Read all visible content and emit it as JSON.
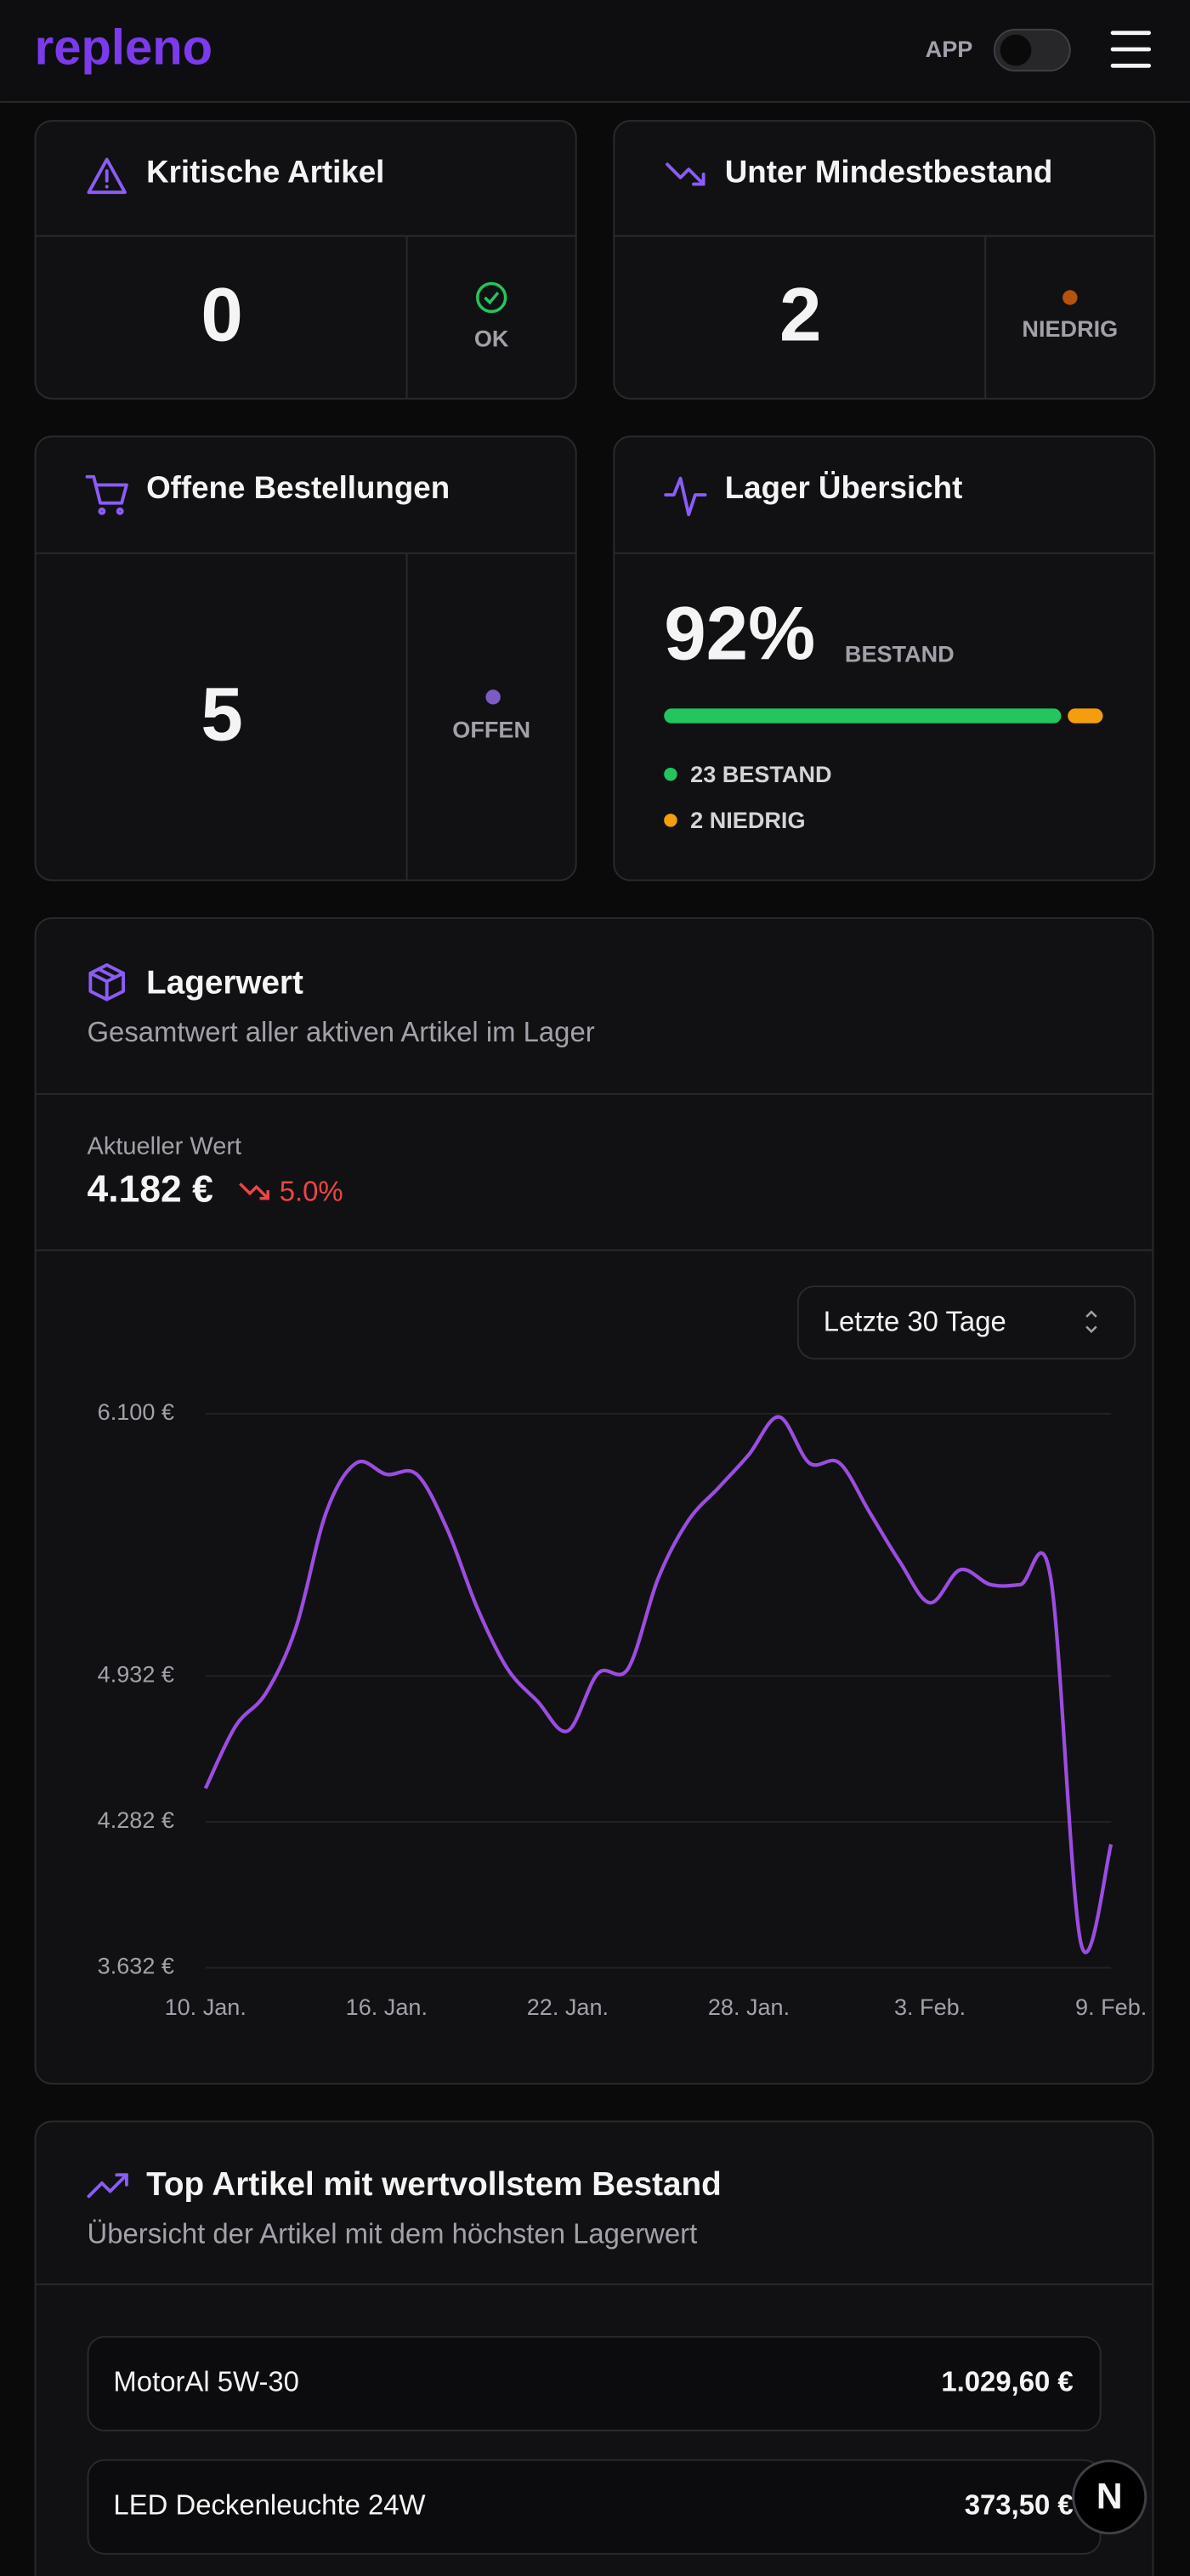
{
  "header": {
    "brand": "repleno",
    "toggle_label": "APP"
  },
  "cards": {
    "critical": {
      "title": "Kritische Artikel",
      "value": "0",
      "status": "OK"
    },
    "below_min": {
      "title": "Unter Mindestbestand",
      "value": "2",
      "status": "NIEDRIG"
    },
    "open_orders": {
      "title": "Offene Bestellungen",
      "value": "5",
      "status": "OFFEN"
    },
    "stock": {
      "title": "Lager Übersicht",
      "percent": "92%",
      "percent_label": "BESTAND",
      "segments": [
        {
          "value": 23,
          "label": "23 BESTAND",
          "color": "#22c55e"
        },
        {
          "value": 2,
          "label": "2 NIEDRIG",
          "color": "#f59e0b"
        }
      ]
    }
  },
  "stock_value": {
    "title": "Lagerwert",
    "subtitle": "Gesamtwert aller aktiven Artikel im Lager",
    "current_label": "Aktueller Wert",
    "current_value": "4.182 €",
    "change": "5.0%",
    "range_select": "Letzte 30 Tage"
  },
  "chart_data": {
    "type": "line",
    "color": "#9b4de0",
    "categories": [
      "10. Jan.",
      null,
      null,
      null,
      null,
      null,
      "16. Jan.",
      null,
      null,
      null,
      null,
      null,
      "22. Jan.",
      null,
      null,
      null,
      null,
      null,
      "28. Jan.",
      null,
      null,
      null,
      null,
      null,
      "3. Feb.",
      null,
      null,
      null,
      null,
      null,
      "9. Feb."
    ],
    "values": [
      4431,
      4709,
      4855,
      5148,
      5661,
      5881,
      5830,
      5830,
      5588,
      5236,
      4965,
      4819,
      4687,
      4943,
      4965,
      5368,
      5625,
      5771,
      5918,
      6086,
      5881,
      5881,
      5661,
      5441,
      5258,
      5405,
      5339,
      5339,
      5368,
      3742,
      4182
    ],
    "ylim": [
      3632,
      6100
    ],
    "yticks": [
      {
        "value": 3632,
        "label": "3.632 €"
      },
      {
        "value": 4282,
        "label": "4.282 €"
      },
      {
        "value": 4932,
        "label": "4.932 €"
      },
      {
        "value": 6100,
        "label": "6.100 €"
      }
    ],
    "grid": true
  },
  "top_articles": {
    "title": "Top Artikel mit wertvollstem Bestand",
    "subtitle": "Übersicht der Artikel mit dem höchsten Lagerwert",
    "items": [
      {
        "name": "MotorAl 5W-30",
        "value": "1.029,60 €"
      },
      {
        "name": "LED Deckenleuchte 24W",
        "value": "373,50 €"
      }
    ]
  },
  "dev_badge": "N"
}
